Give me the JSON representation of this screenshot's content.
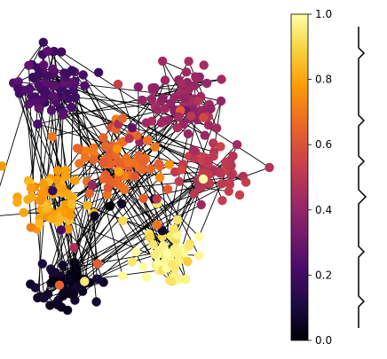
{
  "colorbar": {
    "colormap": "inferno",
    "range": [
      0.0,
      1.0
    ],
    "ticks": [
      {
        "value": 0.0,
        "label": "0.0"
      },
      {
        "value": 0.2,
        "label": "0.2"
      },
      {
        "value": 0.4,
        "label": "0.4"
      },
      {
        "value": 0.6,
        "label": "0.6"
      },
      {
        "value": 0.8,
        "label": "0.8"
      },
      {
        "value": 1.0,
        "label": "1.0"
      }
    ],
    "stops": [
      "#000004",
      "#1b0c41",
      "#4a0c6b",
      "#781c6d",
      "#a52c60",
      "#cf4446",
      "#ed6925",
      "#fb9b06",
      "#f7d13d",
      "#fcffa4"
    ]
  },
  "clusters": [
    {
      "name": "dark-purple",
      "value": 0.22
    },
    {
      "name": "magenta",
      "value": 0.42
    },
    {
      "name": "orange",
      "value": 0.66
    },
    {
      "name": "red-pink",
      "value": 0.5
    },
    {
      "name": "amber",
      "value": 0.8
    },
    {
      "name": "pale-yellow",
      "value": 0.96
    },
    {
      "name": "black",
      "value": 0.06
    }
  ],
  "dendrogram": {
    "leaves": 7
  }
}
